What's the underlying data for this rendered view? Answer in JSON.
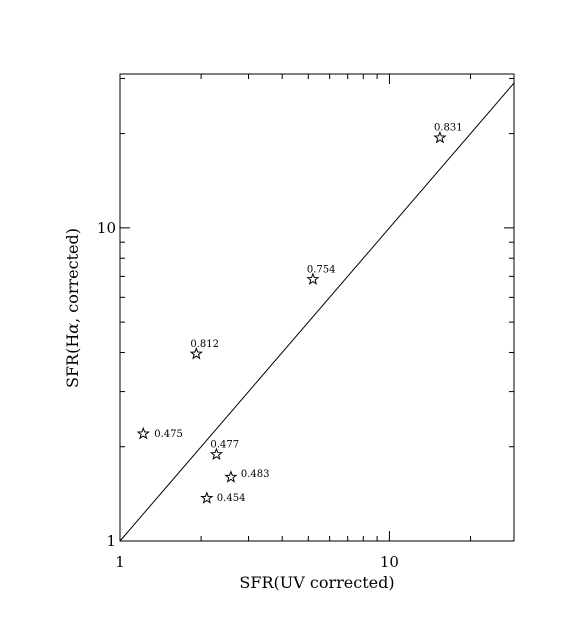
{
  "chart_data": {
    "type": "scatter",
    "title": "",
    "xlabel": "SFR(UV corrected)",
    "ylabel_parts": [
      "SFR(H",
      "α",
      ", corrected)"
    ],
    "xscale": "log",
    "yscale": "log",
    "xlim": [
      1,
      29
    ],
    "ylim": [
      1,
      31
    ],
    "x_tick_labels": [
      {
        "value": 1,
        "label": "1"
      },
      {
        "value": 10,
        "label": "10"
      }
    ],
    "y_tick_labels": [
      {
        "value": 1,
        "label": "1"
      },
      {
        "value": 10,
        "label": "10"
      }
    ],
    "reference_line": "y = x",
    "marker": "open-star",
    "grid": false,
    "points": [
      {
        "x": 1.22,
        "y": 2.2,
        "label": "0.475"
      },
      {
        "x": 1.92,
        "y": 3.96,
        "label": "0.812"
      },
      {
        "x": 2.28,
        "y": 1.89,
        "label": "0.477"
      },
      {
        "x": 2.1,
        "y": 1.37,
        "label": "0.454"
      },
      {
        "x": 2.58,
        "y": 1.6,
        "label": "0.483"
      },
      {
        "x": 5.2,
        "y": 6.85,
        "label": "0.754"
      },
      {
        "x": 15.4,
        "y": 19.4,
        "label": "0.831"
      }
    ]
  }
}
